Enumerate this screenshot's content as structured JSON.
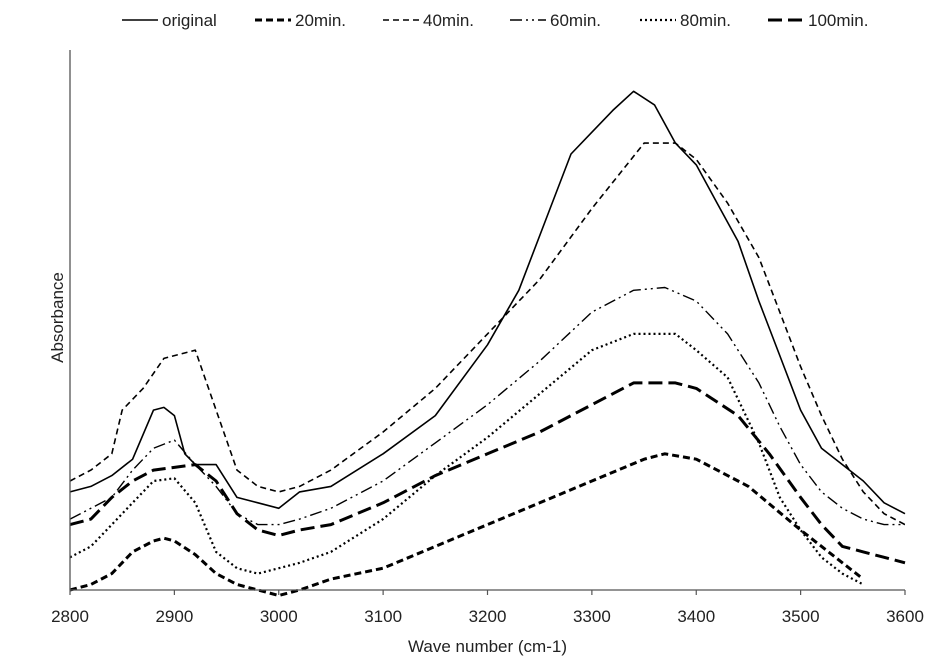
{
  "chart_data": {
    "type": "line",
    "title": "",
    "xlabel": "Wave number (cm-1)",
    "ylabel": "Absorbance",
    "xlim": [
      2800,
      3600
    ],
    "ylim": [
      0,
      1
    ],
    "x_ticks": [
      2800,
      2900,
      3000,
      3100,
      3200,
      3300,
      3400,
      3500,
      3600
    ],
    "x_tick_labels": [
      "2800",
      "2900",
      "3000",
      "3100",
      "3200",
      "3300",
      "3400",
      "3500",
      "3600"
    ],
    "y_ticks_shown": false,
    "grid": false,
    "legend": {
      "position": "top"
    },
    "series": [
      {
        "name": "original",
        "color": "#000000",
        "dash": "solid",
        "x": [
          2800,
          2820,
          2840,
          2860,
          2880,
          2890,
          2900,
          2910,
          2920,
          2940,
          2960,
          2980,
          3000,
          3020,
          3050,
          3100,
          3150,
          3200,
          3230,
          3260,
          3280,
          3300,
          3320,
          3340,
          3360,
          3380,
          3400,
          3420,
          3440,
          3460,
          3480,
          3500,
          3520,
          3540,
          3560,
          3580,
          3600
        ],
        "y": [
          0.18,
          0.19,
          0.21,
          0.24,
          0.33,
          0.335,
          0.32,
          0.25,
          0.23,
          0.23,
          0.17,
          0.16,
          0.15,
          0.18,
          0.19,
          0.25,
          0.32,
          0.45,
          0.55,
          0.7,
          0.8,
          0.84,
          0.88,
          0.915,
          0.89,
          0.82,
          0.78,
          0.71,
          0.64,
          0.53,
          0.43,
          0.33,
          0.26,
          0.23,
          0.2,
          0.16,
          0.14
        ]
      },
      {
        "name": "20min.",
        "color": "#000000",
        "dash": "short-dash-bold",
        "x": [
          2800,
          2820,
          2840,
          2860,
          2880,
          2890,
          2900,
          2920,
          2940,
          2960,
          2980,
          3000,
          3020,
          3050,
          3100,
          3150,
          3200,
          3250,
          3300,
          3350,
          3370,
          3400,
          3450,
          3500,
          3540,
          3560
        ],
        "y": [
          0.0,
          0.01,
          0.03,
          0.07,
          0.09,
          0.095,
          0.09,
          0.065,
          0.03,
          0.01,
          0.0,
          -0.01,
          0.0,
          0.02,
          0.04,
          0.08,
          0.12,
          0.16,
          0.2,
          0.24,
          0.25,
          0.24,
          0.19,
          0.11,
          0.05,
          0.02
        ]
      },
      {
        "name": "40min.",
        "color": "#000000",
        "dash": "dashed",
        "x": [
          2800,
          2820,
          2840,
          2850,
          2870,
          2890,
          2900,
          2920,
          2940,
          2960,
          2980,
          3000,
          3020,
          3050,
          3100,
          3150,
          3200,
          3250,
          3300,
          3350,
          3380,
          3400,
          3430,
          3460,
          3480,
          3500,
          3520,
          3540,
          3560,
          3580,
          3600
        ],
        "y": [
          0.2,
          0.22,
          0.25,
          0.33,
          0.37,
          0.425,
          0.43,
          0.44,
          0.33,
          0.22,
          0.19,
          0.18,
          0.19,
          0.22,
          0.29,
          0.37,
          0.47,
          0.57,
          0.7,
          0.82,
          0.82,
          0.79,
          0.71,
          0.61,
          0.51,
          0.41,
          0.32,
          0.24,
          0.18,
          0.14,
          0.12
        ]
      },
      {
        "name": "60min.",
        "color": "#000000",
        "dash": "dash-dot-dot",
        "x": [
          2800,
          2820,
          2840,
          2860,
          2880,
          2900,
          2920,
          2940,
          2960,
          2980,
          3000,
          3020,
          3050,
          3100,
          3150,
          3200,
          3250,
          3300,
          3340,
          3370,
          3400,
          3430,
          3460,
          3480,
          3500,
          3520,
          3540,
          3560,
          3580,
          3600
        ],
        "y": [
          0.13,
          0.15,
          0.17,
          0.22,
          0.26,
          0.275,
          0.23,
          0.19,
          0.14,
          0.12,
          0.12,
          0.13,
          0.15,
          0.2,
          0.27,
          0.34,
          0.42,
          0.51,
          0.55,
          0.555,
          0.53,
          0.47,
          0.38,
          0.3,
          0.23,
          0.18,
          0.15,
          0.13,
          0.12,
          0.12
        ]
      },
      {
        "name": "80min.",
        "color": "#000000",
        "dash": "dotted",
        "x": [
          2800,
          2820,
          2840,
          2860,
          2880,
          2900,
          2920,
          2940,
          2960,
          2980,
          3000,
          3020,
          3050,
          3100,
          3150,
          3200,
          3250,
          3300,
          3340,
          3380,
          3400,
          3430,
          3460,
          3480,
          3500,
          3520,
          3540,
          3560
        ],
        "y": [
          0.06,
          0.08,
          0.12,
          0.16,
          0.2,
          0.205,
          0.16,
          0.07,
          0.04,
          0.03,
          0.04,
          0.05,
          0.07,
          0.13,
          0.21,
          0.28,
          0.36,
          0.44,
          0.47,
          0.47,
          0.44,
          0.39,
          0.27,
          0.17,
          0.11,
          0.06,
          0.03,
          0.01
        ]
      },
      {
        "name": "100min.",
        "color": "#000000",
        "dash": "long-dash-bold",
        "x": [
          2800,
          2820,
          2840,
          2860,
          2880,
          2900,
          2920,
          2940,
          2960,
          2980,
          3000,
          3020,
          3050,
          3100,
          3150,
          3200,
          3250,
          3300,
          3340,
          3380,
          3400,
          3440,
          3470,
          3500,
          3520,
          3540,
          3560,
          3580,
          3600
        ],
        "y": [
          0.12,
          0.13,
          0.17,
          0.2,
          0.22,
          0.225,
          0.23,
          0.2,
          0.14,
          0.11,
          0.1,
          0.11,
          0.12,
          0.16,
          0.21,
          0.25,
          0.29,
          0.34,
          0.38,
          0.38,
          0.37,
          0.32,
          0.25,
          0.17,
          0.12,
          0.08,
          0.07,
          0.06,
          0.05
        ]
      }
    ]
  }
}
